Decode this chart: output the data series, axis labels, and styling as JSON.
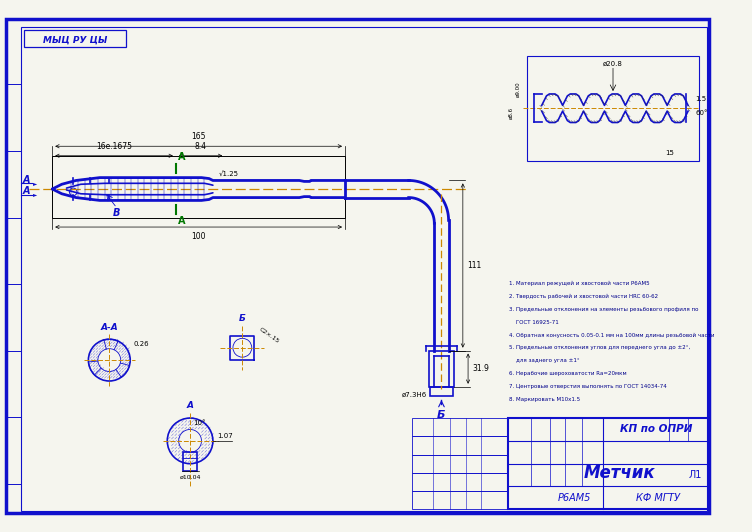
{
  "bg_color": "#f5f5ee",
  "border_color": "#1010cc",
  "line_color": "#1010cc",
  "center_line_color": "#cc8800",
  "dim_color": "#000000",
  "title_box_text": "КП по ОПРИ",
  "name_text": "Метчик",
  "material_text": "Р6АМ5",
  "institution_text": "КФ МГТУ",
  "sheet_text": "Л1",
  "stamp_top_text": "МЫЦ РУ ЦЫ",
  "notes": [
    "1. Материал режущей и хвостовой части Р6АМ5",
    "2. Твердость рабочей и хвостовой части HRC 60-62",
    "3. Предельные отклонения на элементы резьбового профиля по",
    "    ГОСТ 16925-71",
    "4. Обратная конусность 0.05-0.1 мм на 100мм длины резьбовой части",
    "5. Предельные отклонения углов для переднего угла до ±2°,",
    "    для заднего угла ±1°",
    "6. Нерабочие шероховатости Ra=20мкм",
    "7. Центровые отверстия выполнять по ГОСТ 14034-74",
    "8. Маркировать М10х1.5"
  ],
  "fig_width": 7.52,
  "fig_height": 5.32
}
